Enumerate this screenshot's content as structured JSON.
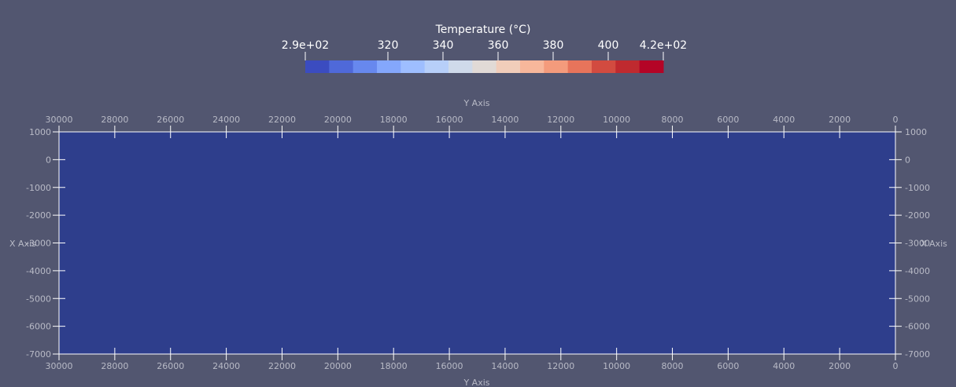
{
  "chart_data": {
    "type": "heatmap",
    "title": "Temperature (°C)",
    "colorbar": {
      "min": 290,
      "max": 420,
      "tick_labels": [
        "2.9e+02",
        "320",
        "340",
        "360",
        "380",
        "400",
        "4.2e+02"
      ],
      "tick_values": [
        290,
        320,
        340,
        360,
        380,
        400,
        420
      ],
      "colors": [
        "#3b4cc0",
        "#4f69d9",
        "#6788ee",
        "#84a7fc",
        "#9ebeff",
        "#b7cff9",
        "#cfdaea",
        "#e1dad6",
        "#f1cdba",
        "#f7b79b",
        "#f49b7c",
        "#e7745b",
        "#d24b40",
        "#bf2a2f",
        "#b40426"
      ]
    },
    "x_axis": {
      "label": "Y Axis",
      "range": [
        30000,
        0
      ],
      "ticks": [
        "30000",
        "28000",
        "26000",
        "24000",
        "22000",
        "20000",
        "18000",
        "16000",
        "14000",
        "12000",
        "10000",
        "8000",
        "6000",
        "4000",
        "2000",
        "0"
      ]
    },
    "y_axis": {
      "label": "X Axis",
      "range": [
        -7000,
        1000
      ],
      "ticks": [
        "1000",
        "0",
        "-1000",
        "-2000",
        "-3000",
        "-4000",
        "-5000",
        "-6000",
        "-7000"
      ]
    },
    "band_colors": [
      "#2e3e8c",
      "#3a4c9e",
      "#4a63b0",
      "#5a76b8",
      "#6a87bf",
      "#7b97c0",
      "#8ea3bb",
      "#9eabb3",
      "#adafa8",
      "#b8ab9a",
      "#bf9f88",
      "#c49078",
      "#c68066",
      "#c46a52",
      "#b9523f",
      "#a9362f",
      "#8e0a22"
    ],
    "levels": [
      10,
      20,
      30,
      40,
      50,
      60,
      70,
      80,
      90,
      100,
      110,
      120,
      130,
      140,
      150,
      160
    ]
  }
}
